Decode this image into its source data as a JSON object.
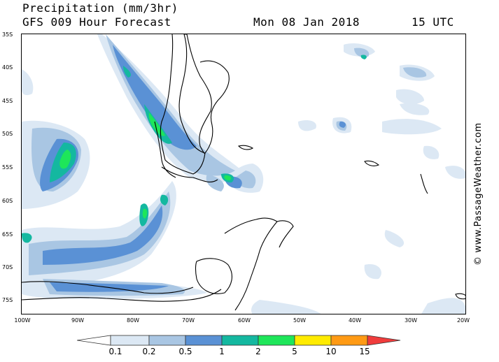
{
  "header": {
    "title": "Precipitation (mm/3hr)",
    "model": "GFS 009 Hour Forecast",
    "date": "Mon 08 Jan 2018",
    "time": "15 UTC"
  },
  "credit": "© www.PassageWeather.com",
  "lat_labels": [
    "35S",
    "40S",
    "45S",
    "50S",
    "55S",
    "60S",
    "65S",
    "70S",
    "75S"
  ],
  "lon_labels": [
    "100W",
    "90W",
    "80W",
    "70W",
    "60W",
    "50W",
    "40W",
    "30W",
    "20W"
  ],
  "legend": {
    "values": [
      "0.1",
      "0.2",
      "0.5",
      "1",
      "2",
      "5",
      "10",
      "15"
    ],
    "colors": [
      "#ffffff",
      "#dce8f4",
      "#a9c6e3",
      "#5a91d5",
      "#14b8a0",
      "#1ee65a",
      "#ffeb00",
      "#ff9a14",
      "#f03c3c"
    ]
  }
}
